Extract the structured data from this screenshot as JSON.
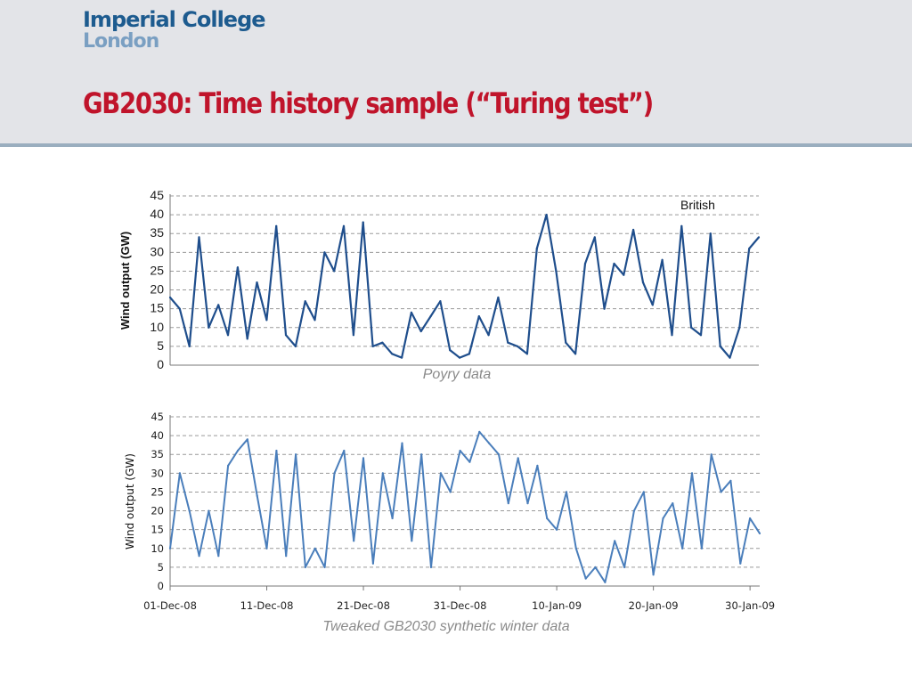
{
  "header": {
    "logo_line1": "Imperial College",
    "logo_line2": "London",
    "title": "GB2030: Time history sample (“Turing test”)"
  },
  "captions": {
    "top": "Poyry data",
    "bottom": "Tweaked GB2030 synthetic winter data"
  },
  "colors": {
    "title": "#c0142b",
    "top_series": "#1f4e8c",
    "bottom_series": "#4a7ebb",
    "header_bg": "#e3e4e8"
  },
  "chart_data": [
    {
      "type": "line",
      "ylabel": "Wind output (GW)",
      "xlabel": "",
      "ylim": [
        0,
        45
      ],
      "yticks": [
        0,
        5,
        10,
        15,
        20,
        25,
        30,
        35,
        40,
        45
      ],
      "xlim": [
        "2008-12-01",
        "2009-01-31"
      ],
      "xtick_labels_shown": false,
      "grid": "horizontal dashed",
      "legend": "top-right",
      "series": [
        {
          "name": "British",
          "x": [
            "2008-12-01",
            "2008-12-02",
            "2008-12-03",
            "2008-12-04",
            "2008-12-05",
            "2008-12-06",
            "2008-12-07",
            "2008-12-08",
            "2008-12-09",
            "2008-12-10",
            "2008-12-11",
            "2008-12-12",
            "2008-12-13",
            "2008-12-14",
            "2008-12-15",
            "2008-12-16",
            "2008-12-17",
            "2008-12-18",
            "2008-12-19",
            "2008-12-20",
            "2008-12-21",
            "2008-12-22",
            "2008-12-23",
            "2008-12-24",
            "2008-12-25",
            "2008-12-26",
            "2008-12-27",
            "2008-12-28",
            "2008-12-29",
            "2008-12-30",
            "2008-12-31",
            "2009-01-01",
            "2009-01-02",
            "2009-01-03",
            "2009-01-04",
            "2009-01-05",
            "2009-01-06",
            "2009-01-07",
            "2009-01-08",
            "2009-01-09",
            "2009-01-10",
            "2009-01-11",
            "2009-01-12",
            "2009-01-13",
            "2009-01-14",
            "2009-01-15",
            "2009-01-16",
            "2009-01-17",
            "2009-01-18",
            "2009-01-19",
            "2009-01-20",
            "2009-01-21",
            "2009-01-22",
            "2009-01-23",
            "2009-01-24",
            "2009-01-25",
            "2009-01-26",
            "2009-01-27",
            "2009-01-28",
            "2009-01-29",
            "2009-01-30",
            "2009-01-31"
          ],
          "values": [
            18,
            15,
            5,
            34,
            10,
            16,
            8,
            26,
            7,
            22,
            12,
            37,
            8,
            5,
            17,
            12,
            30,
            25,
            37,
            8,
            38,
            5,
            6,
            3,
            2,
            14,
            9,
            13,
            17,
            4,
            2,
            3,
            13,
            8,
            18,
            6,
            5,
            3,
            31,
            40,
            25,
            6,
            3,
            27,
            34,
            15,
            27,
            24,
            36,
            22,
            16,
            28,
            8,
            37,
            10,
            8,
            35,
            5,
            2,
            10,
            31,
            34
          ]
        }
      ]
    },
    {
      "type": "line",
      "ylabel": "Wind output (GW)",
      "xlabel": "",
      "ylim": [
        0,
        45
      ],
      "yticks": [
        0,
        5,
        10,
        15,
        20,
        25,
        30,
        35,
        40,
        45
      ],
      "xlim": [
        "2008-12-01",
        "2009-01-31"
      ],
      "xtick_labels": [
        "01-Dec-08",
        "11-Dec-08",
        "21-Dec-08",
        "31-Dec-08",
        "10-Jan-09",
        "20-Jan-09",
        "30-Jan-09"
      ],
      "grid": "horizontal dashed",
      "series": [
        {
          "x": [
            "2008-12-01",
            "2008-12-02",
            "2008-12-03",
            "2008-12-04",
            "2008-12-05",
            "2008-12-06",
            "2008-12-07",
            "2008-12-08",
            "2008-12-09",
            "2008-12-10",
            "2008-12-11",
            "2008-12-12",
            "2008-12-13",
            "2008-12-14",
            "2008-12-15",
            "2008-12-16",
            "2008-12-17",
            "2008-12-18",
            "2008-12-19",
            "2008-12-20",
            "2008-12-21",
            "2008-12-22",
            "2008-12-23",
            "2008-12-24",
            "2008-12-25",
            "2008-12-26",
            "2008-12-27",
            "2008-12-28",
            "2008-12-29",
            "2008-12-30",
            "2008-12-31",
            "2009-01-01",
            "2009-01-02",
            "2009-01-03",
            "2009-01-04",
            "2009-01-05",
            "2009-01-06",
            "2009-01-07",
            "2009-01-08",
            "2009-01-09",
            "2009-01-10",
            "2009-01-11",
            "2009-01-12",
            "2009-01-13",
            "2009-01-14",
            "2009-01-15",
            "2009-01-16",
            "2009-01-17",
            "2009-01-18",
            "2009-01-19",
            "2009-01-20",
            "2009-01-21",
            "2009-01-22",
            "2009-01-23",
            "2009-01-24",
            "2009-01-25",
            "2009-01-26",
            "2009-01-27",
            "2009-01-28",
            "2009-01-29",
            "2009-01-30",
            "2009-01-31"
          ],
          "values": [
            10,
            30,
            20,
            8,
            20,
            8,
            32,
            36,
            39,
            24,
            10,
            36,
            8,
            35,
            5,
            10,
            5,
            30,
            36,
            12,
            34,
            6,
            30,
            18,
            38,
            12,
            35,
            5,
            30,
            25,
            36,
            33,
            41,
            38,
            35,
            22,
            34,
            22,
            32,
            18,
            15,
            25,
            10,
            2,
            5,
            1,
            12,
            5,
            20,
            25,
            3,
            18,
            22,
            10,
            30,
            10,
            35,
            25,
            28,
            6,
            18,
            14
          ]
        }
      ]
    }
  ]
}
